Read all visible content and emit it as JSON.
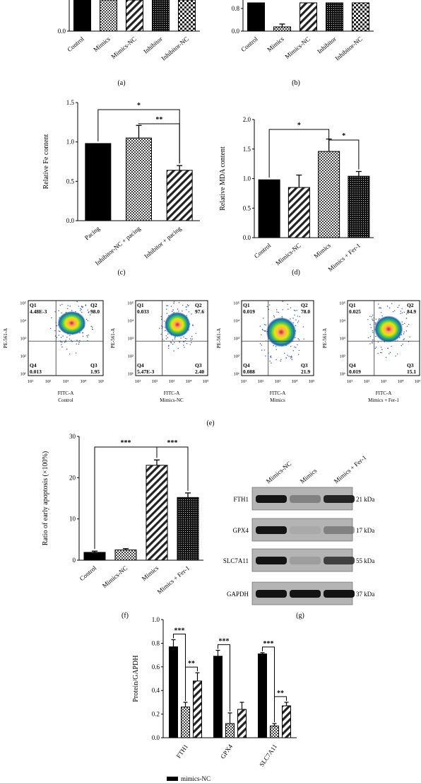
{
  "figure": {
    "panel_labels": [
      "(a)",
      "(b)",
      "(c)",
      "(d)",
      "(e)",
      "(f)",
      "(g)"
    ]
  },
  "chart_data": [
    {
      "id": "a",
      "type": "bar",
      "partial": true,
      "categories": [
        "Control",
        "Mimics",
        "Mimics-NC",
        "Inhibitor",
        "Inhibitor-NC"
      ],
      "values": [
        0.9,
        0.9,
        0.9,
        0.9,
        0.9
      ],
      "ylim": [
        0,
        0.9
      ],
      "yticks": [
        "0.0"
      ],
      "patterns": [
        "solid",
        "cross",
        "diag",
        "dots",
        "check"
      ]
    },
    {
      "id": "b",
      "type": "bar",
      "partial": true,
      "categories": [
        "Control",
        "Mimics",
        "Mimics-NC",
        "Inhibitor",
        "Inhibitor-NC"
      ],
      "values": [
        1.0,
        0.15,
        1.0,
        1.0,
        1.0
      ],
      "errors": [
        0,
        0.1,
        0,
        0,
        0
      ],
      "ylim": [
        0,
        1.0
      ],
      "yticks": [
        "0.0",
        "0.8"
      ],
      "patterns": [
        "solid",
        "cross",
        "diag",
        "dots",
        "check"
      ]
    },
    {
      "id": "c",
      "type": "bar",
      "categories": [
        "Pacing",
        "Inhibitor-NC + pacing",
        "Inhibitor + pacing"
      ],
      "values": [
        0.98,
        1.05,
        0.64
      ],
      "errors": [
        0,
        0.16,
        0.06
      ],
      "ylabel": "Relative Fe content",
      "ylim": [
        0,
        1.5
      ],
      "yticks": [
        "0.0",
        "0.5",
        "1.0",
        "1.5"
      ],
      "patterns": [
        "solid",
        "cross",
        "diag"
      ],
      "sig": [
        {
          "from": 0,
          "to": 2,
          "label": "*"
        },
        {
          "from": 1,
          "to": 2,
          "label": "**"
        }
      ]
    },
    {
      "id": "d",
      "type": "bar",
      "categories": [
        "Control",
        "Mimics-NC",
        "Mimics",
        "Mimics + Fer-1"
      ],
      "values": [
        0.98,
        0.85,
        1.46,
        1.04
      ],
      "errors": [
        0,
        0.21,
        0.21,
        0.08
      ],
      "ylabel": "Relative MDA content",
      "ylim": [
        0,
        2.0
      ],
      "yticks": [
        "0.0",
        "0.5",
        "1.0",
        "1.5",
        "2.0"
      ],
      "patterns": [
        "solid",
        "diag",
        "cross",
        "dots"
      ],
      "sig": [
        {
          "from": 0,
          "to": 2,
          "label": "*"
        },
        {
          "from": 2,
          "to": 3,
          "label": "*"
        }
      ]
    },
    {
      "id": "e",
      "type": "scatter",
      "plots": [
        {
          "condition": "Control",
          "quadrants": {
            "Q1": "4.48E-3",
            "Q2": "98.0",
            "Q3": "1.95",
            "Q4": "0.013"
          }
        },
        {
          "condition": "Mimics-NC",
          "quadrants": {
            "Q1": "0.033",
            "Q2": "97.6",
            "Q3": "2.40",
            "Q4": "5.47E-3"
          }
        },
        {
          "condition": "Mimics",
          "quadrants": {
            "Q1": "0.019",
            "Q2": "78.0",
            "Q3": "21.9",
            "Q4": "0.088"
          }
        },
        {
          "condition": "Mimics + Fer-1",
          "quadrants": {
            "Q1": "0.025",
            "Q2": "84.9",
            "Q3": "15.1",
            "Q4": "0.019"
          }
        }
      ],
      "xlabel": "FITC-A",
      "ylabel": "PE-561-A",
      "xticks": [
        "10¹",
        "10²",
        "10³",
        "10⁴",
        "10⁵"
      ],
      "yticks": [
        "10¹",
        "10²",
        "10³",
        "10⁴",
        "10⁵"
      ]
    },
    {
      "id": "f",
      "type": "bar",
      "categories": [
        "Control",
        "Mimics-NC",
        "Mimics",
        "Mimics + Fer-1"
      ],
      "values": [
        1.9,
        2.5,
        23.0,
        15.2
      ],
      "errors": [
        0.3,
        0.3,
        1.3,
        1.1
      ],
      "ylabel": "Ratio of early apoptosis (×100%)",
      "ylim": [
        0,
        30
      ],
      "yticks": [
        "0",
        "10",
        "20",
        "30"
      ],
      "patterns": [
        "solid",
        "cross",
        "diag",
        "dots"
      ],
      "sig": [
        {
          "from": 0,
          "to": 2,
          "label": "***"
        },
        {
          "from": 2,
          "to": 3,
          "label": "***"
        }
      ]
    },
    {
      "id": "g-blot",
      "type": "table",
      "lanes": [
        "Mimics-NC",
        "Mimics",
        "Mimics + Fer-1"
      ],
      "rows": [
        {
          "protein": "FTH1",
          "size": "21 kDa"
        },
        {
          "protein": "GPX4",
          "size": "17 kDa"
        },
        {
          "protein": "SLC7A11",
          "size": "55 kDa"
        },
        {
          "protein": "GAPDH",
          "size": "37 kDa"
        }
      ]
    },
    {
      "id": "h",
      "type": "bar",
      "categories": [
        "FTH1",
        "GPX4",
        "SLC7A11"
      ],
      "series": [
        {
          "name": "mimics-NC",
          "values": [
            0.77,
            0.69,
            0.71
          ],
          "errors": [
            0.06,
            0.05,
            0.01
          ]
        },
        {
          "values": [
            0.26,
            0.12,
            0.1
          ],
          "errors": [
            0.04,
            0.09,
            0.02
          ]
        },
        {
          "values": [
            0.48,
            0.24,
            0.27
          ],
          "errors": [
            0.07,
            0.06,
            0.03
          ]
        }
      ],
      "ylabel": "Protein/GAPDH",
      "ylim": [
        0,
        1.0
      ],
      "yticks": [
        "0.0",
        "0.2",
        "0.4",
        "0.6",
        "0.8",
        "1.0"
      ],
      "patterns": [
        "solid",
        "cross",
        "diag"
      ],
      "sig": [
        {
          "group": 0,
          "from": 0,
          "to": 1,
          "label": "***"
        },
        {
          "group": 0,
          "from": 1,
          "to": 2,
          "label": "**"
        },
        {
          "group": 1,
          "from": 0,
          "to": 1,
          "label": "***"
        },
        {
          "group": 2,
          "from": 0,
          "to": 1,
          "label": "***"
        },
        {
          "group": 2,
          "from": 1,
          "to": 2,
          "label": "**"
        }
      ],
      "legend_entry": "mimics-NC"
    }
  ]
}
